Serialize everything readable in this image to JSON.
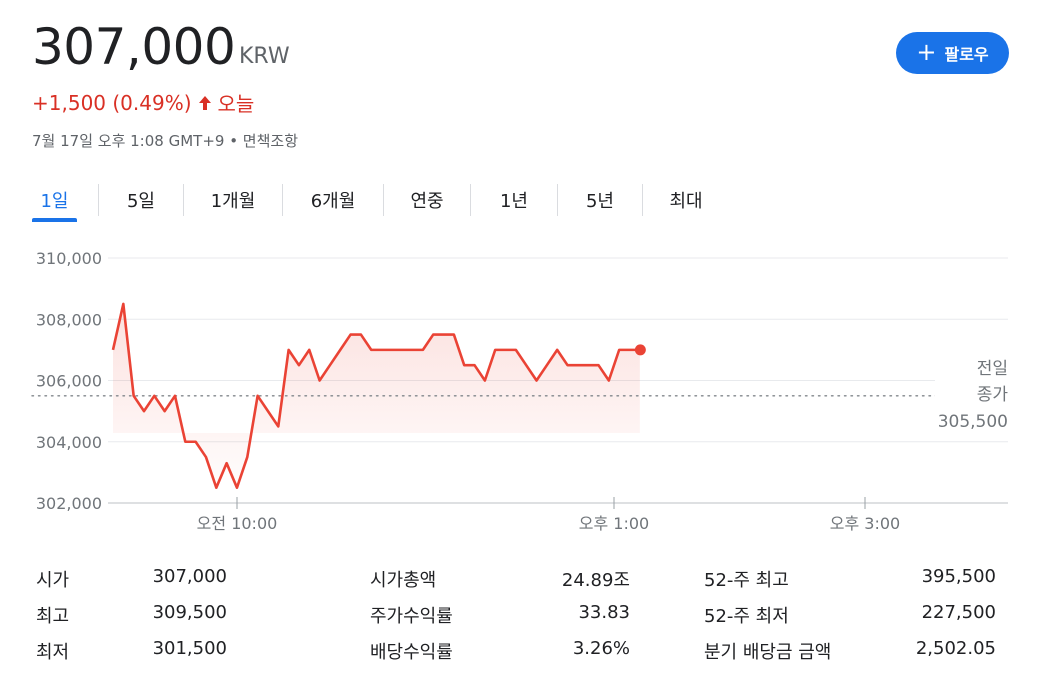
{
  "quote": {
    "price": "307,000",
    "currency": "KRW",
    "change": "+1,500 (0.49%)",
    "change_period": "오늘",
    "timestamp": "7월 17일 오후 1:08 GMT+9 • 면책조항"
  },
  "follow_button": {
    "label": "팔로우",
    "icon": "plus-icon"
  },
  "tabs": [
    {
      "label": "1일",
      "active": true
    },
    {
      "label": "5일"
    },
    {
      "label": "1개월"
    },
    {
      "label": "6개월"
    },
    {
      "label": "연중"
    },
    {
      "label": "1년"
    },
    {
      "label": "5년"
    },
    {
      "label": "최대"
    }
  ],
  "colors": {
    "accent": "#1a73e8",
    "negative_line": "#ea4335",
    "change_text": "#d93025"
  },
  "chart_data": {
    "type": "line",
    "y_ticks": [
      "310,000",
      "308,000",
      "306,000",
      "304,000",
      "302,000"
    ],
    "ylim": [
      302000,
      310000
    ],
    "x_ticks": [
      "오전 10:00",
      "오후 1:00",
      "오후 3:00"
    ],
    "series": [
      {
        "values": [
          307000,
          308500,
          305500,
          305000,
          305500,
          305000,
          305500,
          304000,
          304000,
          303500,
          302500,
          303300,
          302500,
          303500,
          305500,
          305000,
          304500,
          307000,
          306500,
          307000,
          306000,
          306500,
          307000,
          307500,
          307500,
          307000,
          307000,
          307000,
          307000,
          307000,
          307000,
          307500,
          307500,
          307500,
          306500,
          306500,
          306000,
          307000,
          307000,
          307000,
          306500,
          306000,
          306500,
          307000,
          306500,
          306500,
          306500,
          306500,
          306000,
          307000,
          307000,
          307000
        ]
      }
    ],
    "reference": {
      "label_line1": "전일",
      "label_line2": "종가",
      "value": 305500,
      "value_label": "305,500"
    },
    "grid": true
  },
  "stats": [
    [
      {
        "label": "시가",
        "value": "307,000"
      },
      {
        "label": "시가총액",
        "value": "24.89조"
      },
      {
        "label": "52-주 최고",
        "value": "395,500"
      }
    ],
    [
      {
        "label": "최고",
        "value": "309,500"
      },
      {
        "label": "주가수익률",
        "value": "33.83"
      },
      {
        "label": "52-주 최저",
        "value": "227,500"
      }
    ],
    [
      {
        "label": "최저",
        "value": "301,500"
      },
      {
        "label": "배당수익률",
        "value": "3.26%"
      },
      {
        "label": "분기 배당금 금액",
        "value": "2,502.05"
      }
    ]
  ]
}
